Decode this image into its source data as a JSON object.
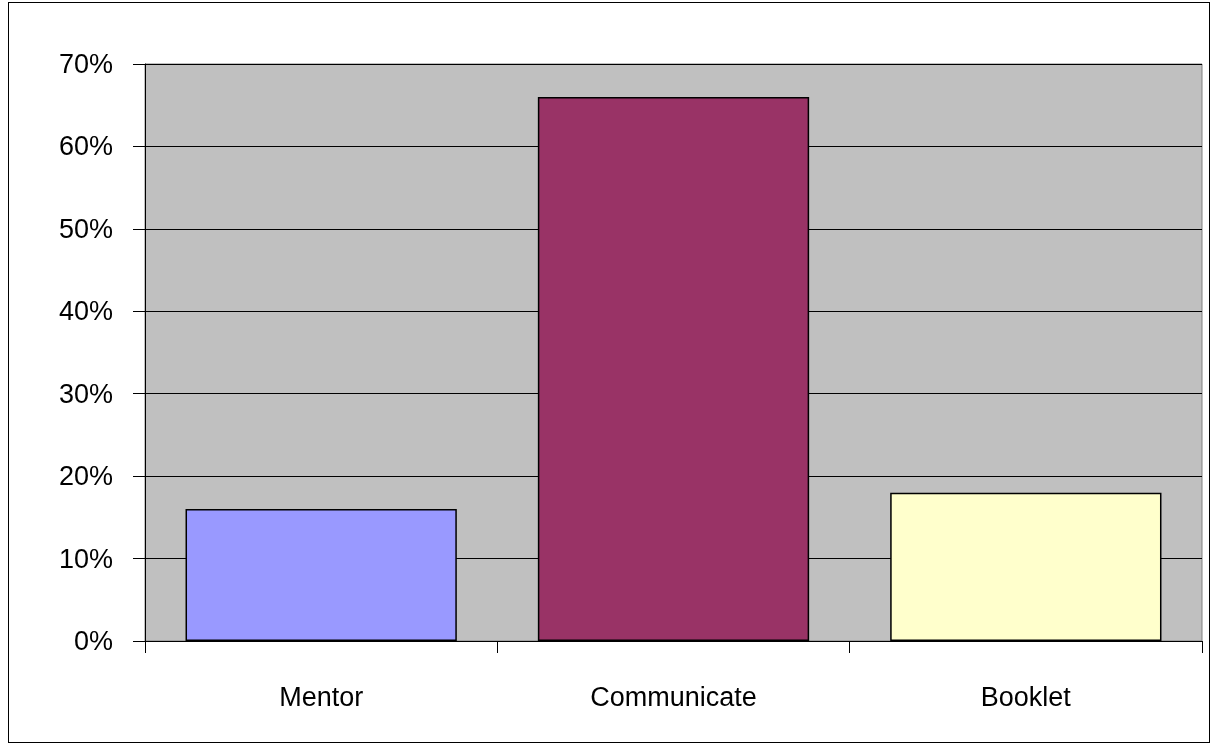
{
  "chart_data": {
    "type": "bar",
    "categories": [
      "Mentor",
      "Communicate",
      "Booklet"
    ],
    "values": [
      16,
      66,
      18
    ],
    "colors": [
      "#9999ff",
      "#993366",
      "#ffffcc"
    ],
    "ylim": [
      0,
      70
    ],
    "yticks": [
      {
        "value": 0,
        "label": "0%"
      },
      {
        "value": 10,
        "label": "10%"
      },
      {
        "value": 20,
        "label": "20%"
      },
      {
        "value": 30,
        "label": "30%"
      },
      {
        "value": 40,
        "label": "40%"
      },
      {
        "value": 50,
        "label": "50%"
      },
      {
        "value": 60,
        "label": "60%"
      },
      {
        "value": 70,
        "label": "70%"
      }
    ],
    "grid": "y"
  }
}
